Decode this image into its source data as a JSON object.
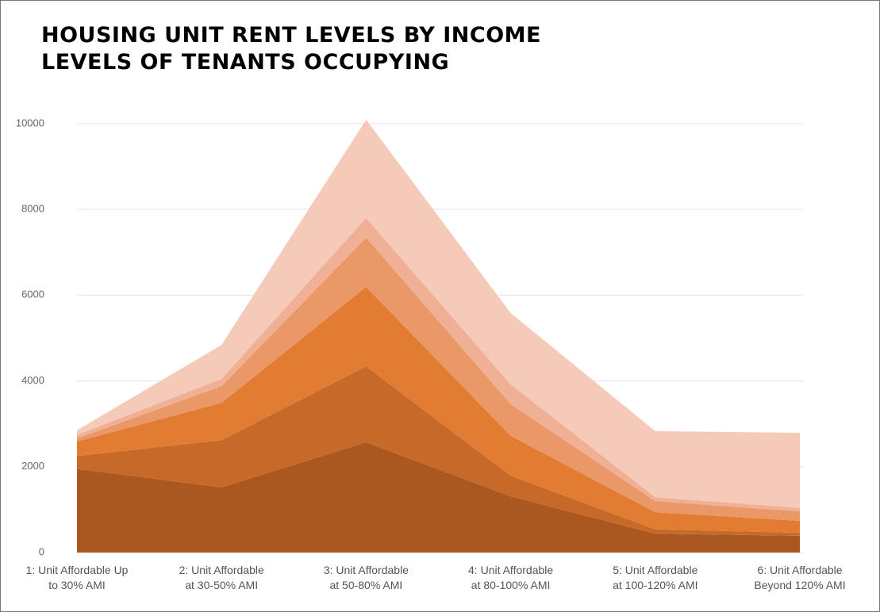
{
  "chart_data": {
    "type": "stacked-area",
    "title": "HOUSING UNIT RENT LEVELS BY INCOME\nLEVELS OF TENANTS OCCUPYING",
    "categories": [
      "1: Unit Affordable Up\nto 30% AMI",
      "2: Unit Affordable\nat 30-50% AMI",
      "3: Unit Affordable\nat 50-80% AMI",
      "4: Unit Affordable\nat 80-100% AMI",
      "5: Unit Affordable\nat 100-120% AMI",
      "6: Unit Affordable\nBeyond 120% AMI"
    ],
    "series": [
      {
        "color": "#ab5720",
        "values": [
          1950,
          1520,
          2570,
          1310,
          440,
          390
        ]
      },
      {
        "color": "#c76a29",
        "values": [
          300,
          1100,
          1770,
          480,
          100,
          70
        ]
      },
      {
        "color": "#e27c33",
        "values": [
          340,
          870,
          1850,
          930,
          400,
          280
        ]
      },
      {
        "color": "#eb9868",
        "values": [
          70,
          390,
          1150,
          740,
          260,
          220
        ]
      },
      {
        "color": "#f0b096",
        "values": [
          80,
          170,
          460,
          460,
          90,
          80
        ]
      },
      {
        "color": "#f6cab9",
        "values": [
          110,
          790,
          2290,
          1660,
          1540,
          1750
        ]
      }
    ],
    "ylim": [
      0,
      10200
    ],
    "yticks": [
      0,
      2000,
      4000,
      6000,
      8000,
      10000
    ],
    "grid": true
  }
}
